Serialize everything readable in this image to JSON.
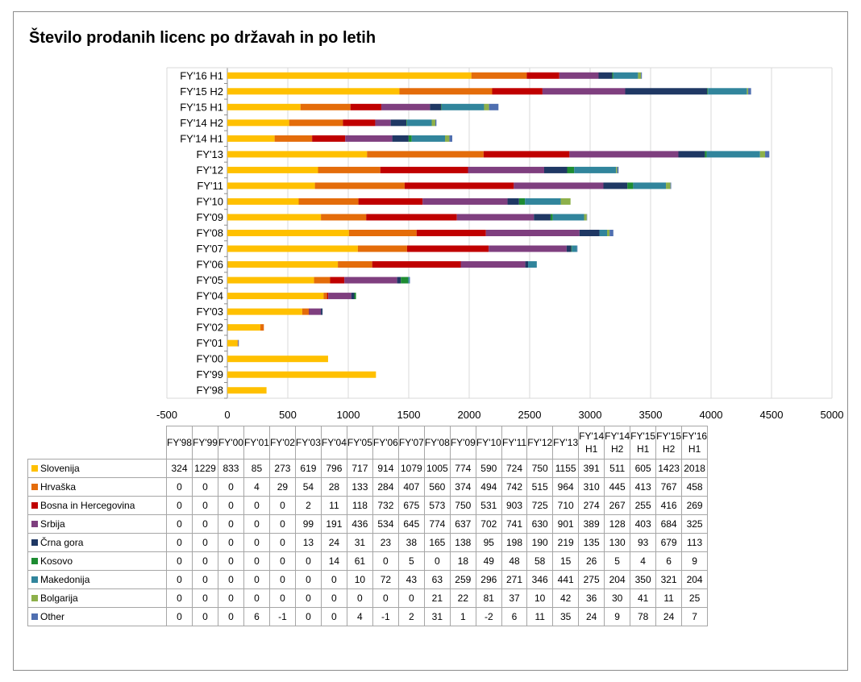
{
  "title": "Število prodanih licenc po državah in po letih",
  "chart_data": {
    "type": "bar",
    "orientation": "horizontal",
    "stacked": true,
    "title": "Število prodanih licenc po državah in po letih",
    "categories": [
      "FY'98",
      "FY'99",
      "FY'00",
      "FY'01",
      "FY'02",
      "FY'03",
      "FY'04",
      "FY'05",
      "FY'06",
      "FY'07",
      "FY'08",
      "FY'09",
      "FY'10",
      "FY'11",
      "FY'12",
      "FY'13",
      "FY'14 H1",
      "FY'14 H2",
      "FY'15 H1",
      "FY'15 H2",
      "FY'16 H1"
    ],
    "table_headers": [
      "FY'98",
      "FY'99",
      "FY'00",
      "FY'01",
      "FY'02",
      "FY'03",
      "FY'04",
      "FY'05",
      "FY'06",
      "FY'07",
      "FY'08",
      "FY'09",
      "FY'10",
      "FY'11",
      "FY'12",
      "FY'13",
      "FY'14 H1",
      "FY'14 H2",
      "FY'15 H1",
      "FY'15 H2",
      "FY'16 H1"
    ],
    "xlim": [
      -500,
      5000
    ],
    "xticks": [
      -500,
      0,
      500,
      1000,
      1500,
      2000,
      2500,
      3000,
      3500,
      4000,
      4500,
      5000
    ],
    "grid": true,
    "legend": "data table",
    "series": [
      {
        "name": "Slovenija",
        "color": "#FFC000",
        "values": [
          324,
          1229,
          833,
          85,
          273,
          619,
          796,
          717,
          914,
          1079,
          1005,
          774,
          590,
          724,
          750,
          1155,
          391,
          511,
          605,
          1423,
          2018
        ]
      },
      {
        "name": "Hrvaška",
        "color": "#E46C0A",
        "values": [
          0,
          0,
          0,
          4,
          29,
          54,
          28,
          133,
          284,
          407,
          560,
          374,
          494,
          742,
          515,
          964,
          310,
          445,
          413,
          767,
          458
        ]
      },
      {
        "name": "Bosna in Hercegovina",
        "color": "#C00000",
        "values": [
          0,
          0,
          0,
          0,
          0,
          2,
          11,
          118,
          732,
          675,
          573,
          750,
          531,
          903,
          725,
          710,
          274,
          267,
          255,
          416,
          269
        ]
      },
      {
        "name": "Srbija",
        "color": "#7F3F7F",
        "values": [
          0,
          0,
          0,
          0,
          0,
          99,
          191,
          436,
          534,
          645,
          774,
          637,
          702,
          741,
          630,
          901,
          389,
          128,
          403,
          684,
          325
        ]
      },
      {
        "name": "Črna gora",
        "color": "#1F3864",
        "values": [
          0,
          0,
          0,
          0,
          0,
          13,
          24,
          31,
          23,
          38,
          165,
          138,
          95,
          198,
          190,
          219,
          135,
          130,
          93,
          679,
          113
        ]
      },
      {
        "name": "Kosovo",
        "color": "#1E8C32",
        "values": [
          0,
          0,
          0,
          0,
          0,
          0,
          14,
          61,
          0,
          5,
          0,
          18,
          49,
          48,
          58,
          15,
          26,
          5,
          4,
          6,
          9
        ]
      },
      {
        "name": "Makedonija",
        "color": "#31859C",
        "values": [
          0,
          0,
          0,
          0,
          0,
          0,
          0,
          10,
          72,
          43,
          63,
          259,
          296,
          271,
          346,
          441,
          275,
          204,
          350,
          321,
          204
        ]
      },
      {
        "name": "Bolgarija",
        "color": "#8DB04A",
        "values": [
          0,
          0,
          0,
          0,
          0,
          0,
          0,
          0,
          0,
          0,
          21,
          22,
          81,
          37,
          10,
          42,
          36,
          30,
          41,
          11,
          25
        ]
      },
      {
        "name": "Other",
        "color": "#4F6FB0",
        "values": [
          0,
          0,
          0,
          6,
          -1,
          0,
          0,
          4,
          -1,
          2,
          31,
          1,
          -2,
          6,
          11,
          35,
          24,
          9,
          78,
          24,
          7
        ]
      }
    ]
  }
}
